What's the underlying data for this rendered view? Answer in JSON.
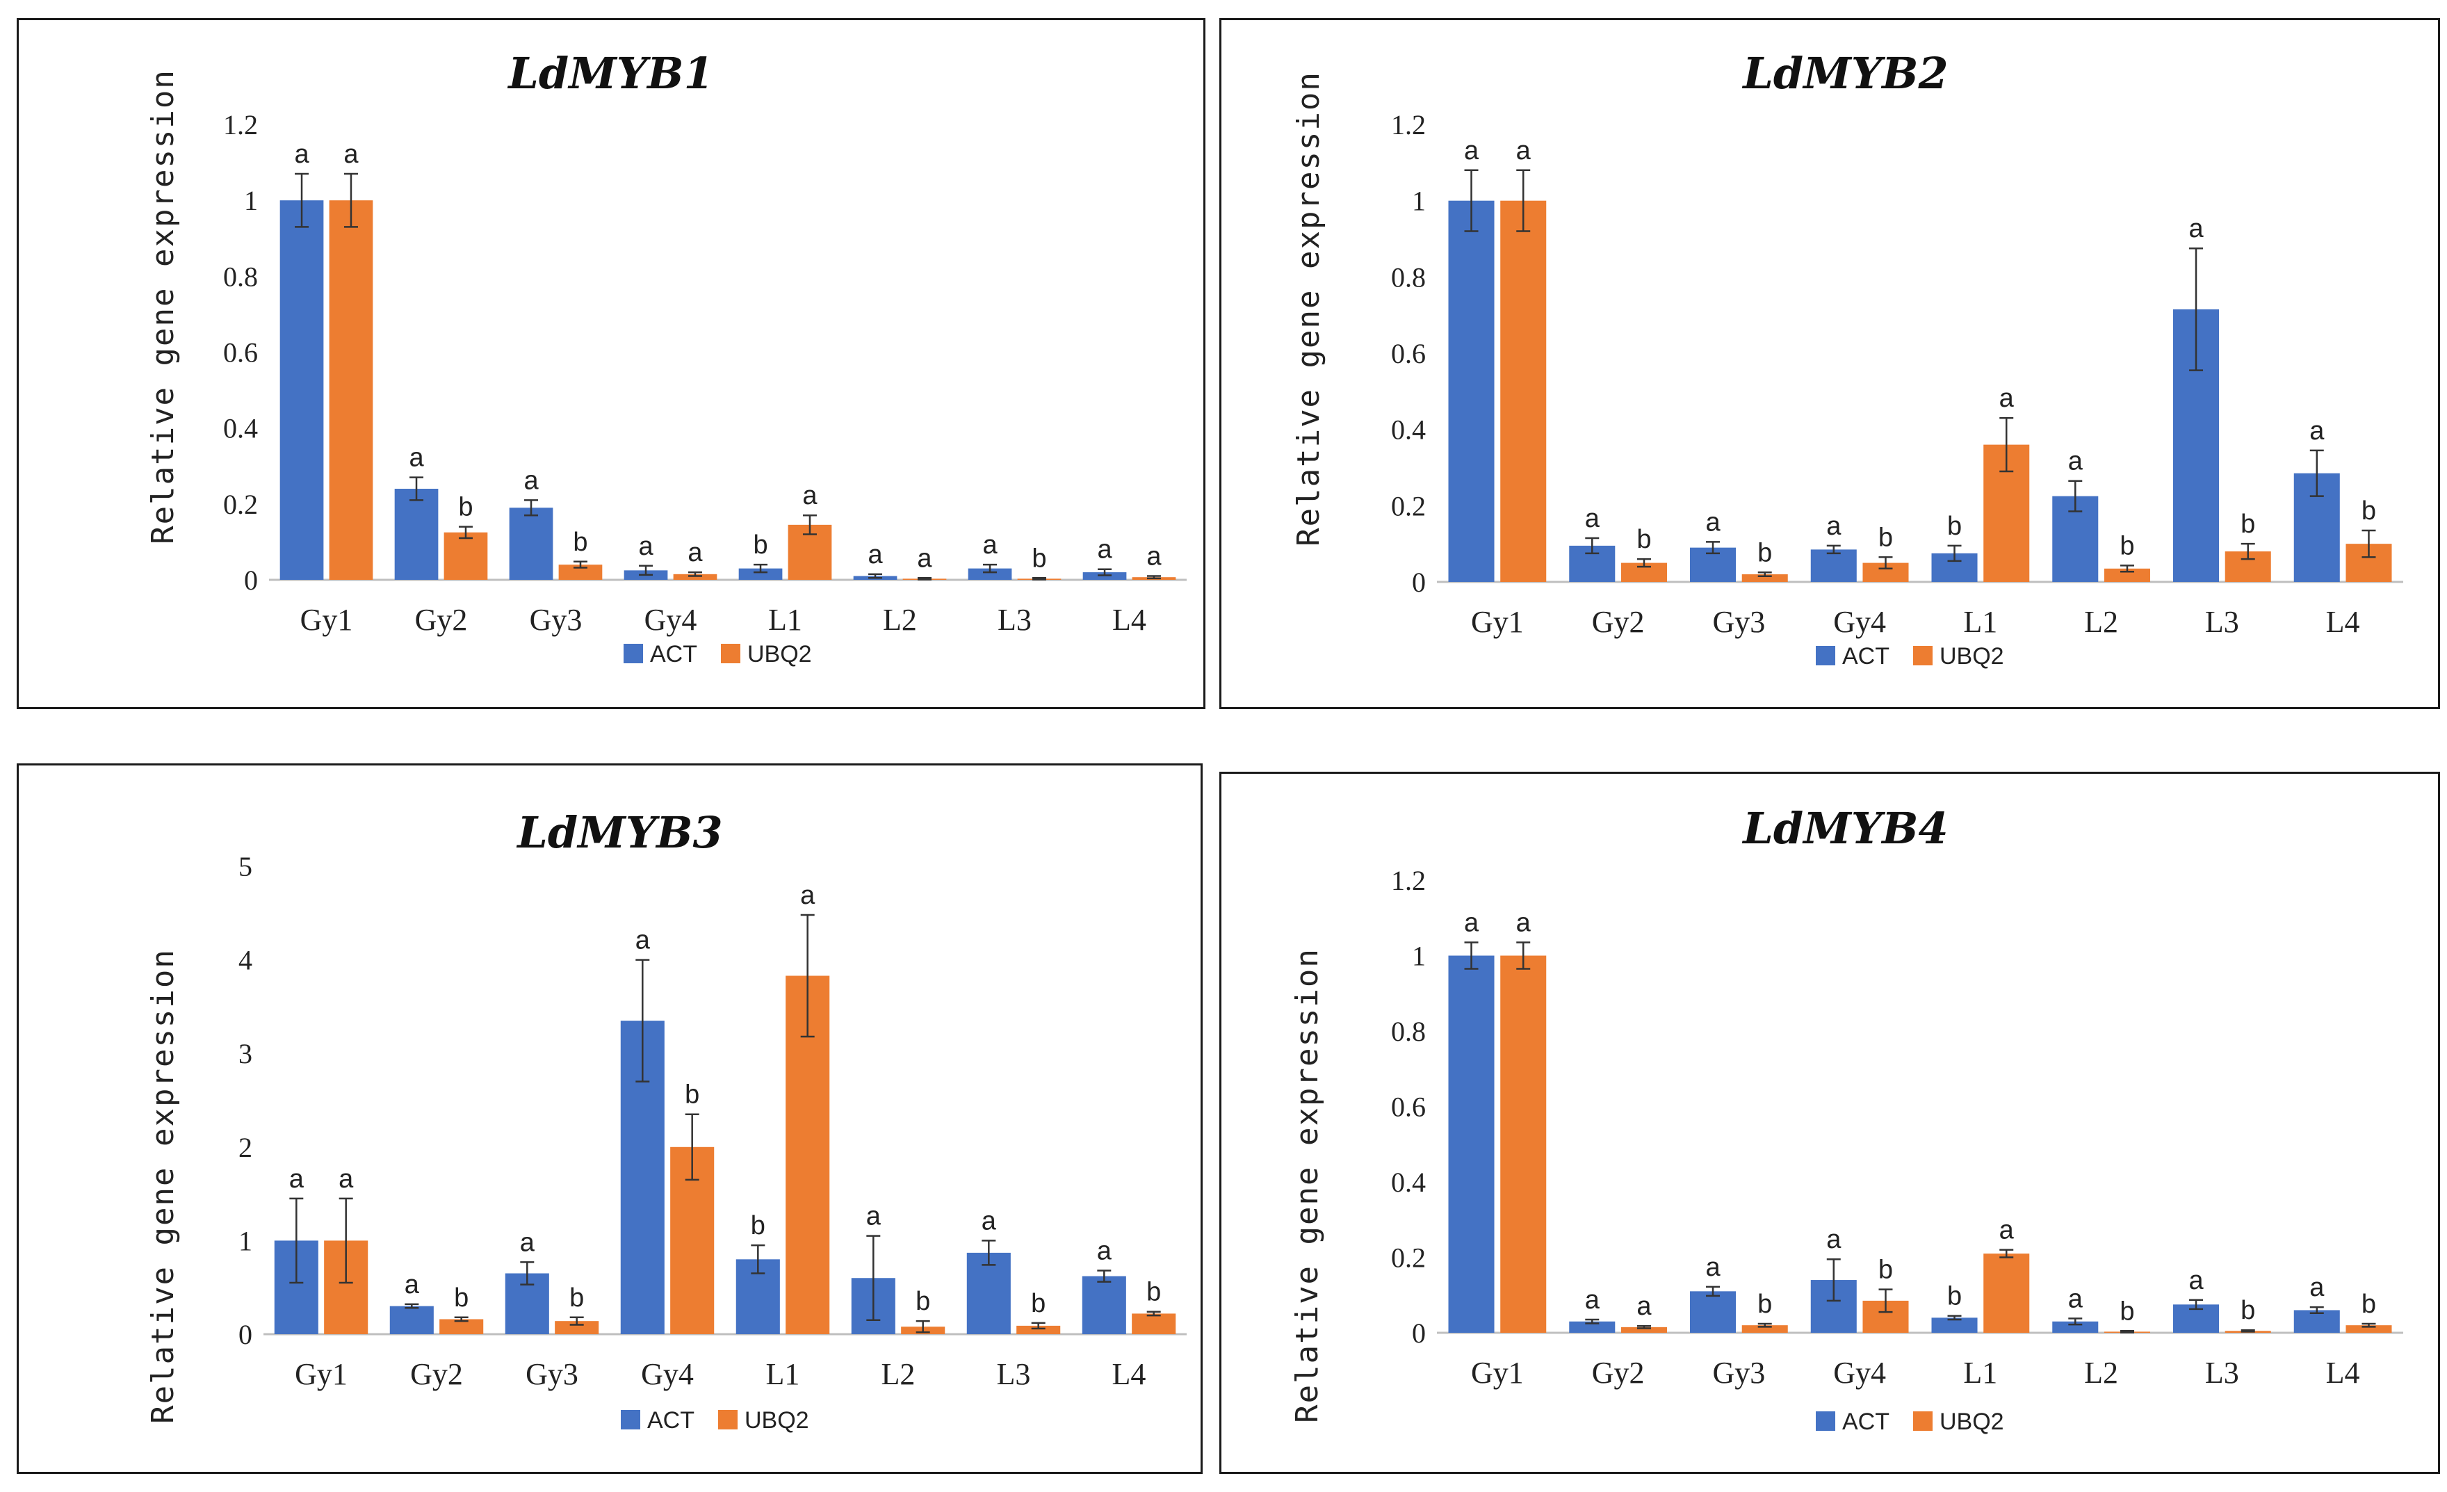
{
  "figure": {
    "colors": {
      "act": "#4472C4",
      "ubq2": "#ED7D31",
      "axis": "#bfbfbf",
      "error": "#333333"
    }
  },
  "chart_data": [
    {
      "type": "bar",
      "title": "LdMYB1",
      "ylabel": "Relative gene expression",
      "xlabel": "",
      "categories": [
        "Gy1",
        "Gy2",
        "Gy3",
        "Gy4",
        "L1",
        "L2",
        "L3",
        "L4"
      ],
      "ylim": [
        0,
        1.2
      ],
      "yticks": [
        0,
        0.2,
        0.4,
        0.6,
        0.8,
        1,
        1.2
      ],
      "ytick_labels": [
        "0",
        "0.2",
        "0.4",
        "0.6",
        "0.8",
        "1",
        "1.2"
      ],
      "legend_position": "bottom",
      "series": [
        {
          "name": "ACT",
          "values": [
            1.0,
            0.24,
            0.19,
            0.025,
            0.03,
            0.01,
            0.03,
            0.02
          ],
          "errors": [
            0.07,
            0.03,
            0.02,
            0.012,
            0.01,
            0.005,
            0.01,
            0.008
          ],
          "letters": [
            "a",
            "a",
            "a",
            "a",
            "b",
            "a",
            "a",
            "a"
          ]
        },
        {
          "name": "UBQ2",
          "values": [
            1.0,
            0.125,
            0.04,
            0.015,
            0.145,
            0.003,
            0.003,
            0.007
          ],
          "errors": [
            0.07,
            0.015,
            0.008,
            0.005,
            0.025,
            0.002,
            0.002,
            0.003
          ],
          "letters": [
            "a",
            "b",
            "b",
            "a",
            "a",
            "a",
            "b",
            "a"
          ]
        }
      ]
    },
    {
      "type": "bar",
      "title": "LdMYB2",
      "ylabel": "Relative gene expression",
      "xlabel": "",
      "categories": [
        "Gy1",
        "Gy2",
        "Gy3",
        "Gy4",
        "L1",
        "L2",
        "L3",
        "L4"
      ],
      "ylim": [
        0,
        1.2
      ],
      "yticks": [
        0,
        0.2,
        0.4,
        0.6,
        0.8,
        1,
        1.2
      ],
      "ytick_labels": [
        "0",
        "0.2",
        "0.4",
        "0.6",
        "0.8",
        "1",
        "1.2"
      ],
      "legend_position": "bottom",
      "series": [
        {
          "name": "ACT",
          "values": [
            1.0,
            0.095,
            0.09,
            0.085,
            0.075,
            0.225,
            0.715,
            0.285
          ],
          "errors": [
            0.08,
            0.02,
            0.015,
            0.01,
            0.02,
            0.04,
            0.16,
            0.06
          ],
          "letters": [
            "a",
            "a",
            "a",
            "a",
            "b",
            "a",
            "a",
            "a"
          ]
        },
        {
          "name": "UBQ2",
          "values": [
            1.0,
            0.05,
            0.02,
            0.05,
            0.36,
            0.035,
            0.08,
            0.1
          ],
          "errors": [
            0.08,
            0.01,
            0.005,
            0.015,
            0.07,
            0.008,
            0.02,
            0.035
          ],
          "letters": [
            "a",
            "b",
            "b",
            "b",
            "a",
            "b",
            "b",
            "b"
          ]
        }
      ]
    },
    {
      "type": "bar",
      "title": "LdMYB3",
      "ylabel": "Relative gene expression",
      "xlabel": "",
      "categories": [
        "Gy1",
        "Gy2",
        "Gy3",
        "Gy4",
        "L1",
        "L2",
        "L3",
        "L4"
      ],
      "ylim": [
        0,
        5
      ],
      "yticks": [
        0,
        1,
        2,
        3,
        4,
        5
      ],
      "ytick_labels": [
        "0",
        "1",
        "2",
        "3",
        "4",
        "5"
      ],
      "legend_position": "bottom",
      "series": [
        {
          "name": "ACT",
          "values": [
            1.0,
            0.3,
            0.65,
            3.35,
            0.8,
            0.6,
            0.87,
            0.62
          ],
          "errors": [
            0.45,
            0.02,
            0.12,
            0.65,
            0.15,
            0.45,
            0.13,
            0.06
          ],
          "letters": [
            "a",
            "a",
            "a",
            "a",
            "b",
            "a",
            "a",
            "a"
          ]
        },
        {
          "name": "UBQ2",
          "values": [
            1.0,
            0.16,
            0.14,
            2.0,
            3.83,
            0.08,
            0.09,
            0.22
          ],
          "errors": [
            0.45,
            0.02,
            0.04,
            0.35,
            0.65,
            0.06,
            0.03,
            0.02
          ],
          "letters": [
            "a",
            "b",
            "b",
            "b",
            "a",
            "b",
            "b",
            "b"
          ]
        }
      ]
    },
    {
      "type": "bar",
      "title": "LdMYB4",
      "ylabel": "Relative gene expression",
      "xlabel": "",
      "categories": [
        "Gy1",
        "Gy2",
        "Gy3",
        "Gy4",
        "L1",
        "L2",
        "L3",
        "L4"
      ],
      "ylim": [
        0,
        1.2
      ],
      "yticks": [
        0,
        0.2,
        0.4,
        0.6,
        0.8,
        1,
        1.2
      ],
      "ytick_labels": [
        "0",
        "0.2",
        "0.4",
        "0.6",
        "0.8",
        "1",
        "1.2"
      ],
      "legend_position": "bottom",
      "series": [
        {
          "name": "ACT",
          "values": [
            1.0,
            0.03,
            0.11,
            0.14,
            0.04,
            0.03,
            0.075,
            0.06
          ],
          "errors": [
            0.035,
            0.005,
            0.012,
            0.055,
            0.005,
            0.008,
            0.012,
            0.008
          ],
          "letters": [
            "a",
            "a",
            "a",
            "a",
            "b",
            "a",
            "a",
            "a"
          ]
        },
        {
          "name": "UBQ2",
          "values": [
            1.0,
            0.015,
            0.02,
            0.085,
            0.21,
            0.003,
            0.005,
            0.02
          ],
          "errors": [
            0.035,
            0.003,
            0.004,
            0.03,
            0.01,
            0.002,
            0.002,
            0.004
          ],
          "letters": [
            "a",
            "a",
            "b",
            "b",
            "a",
            "b",
            "b",
            "b"
          ]
        }
      ]
    }
  ]
}
